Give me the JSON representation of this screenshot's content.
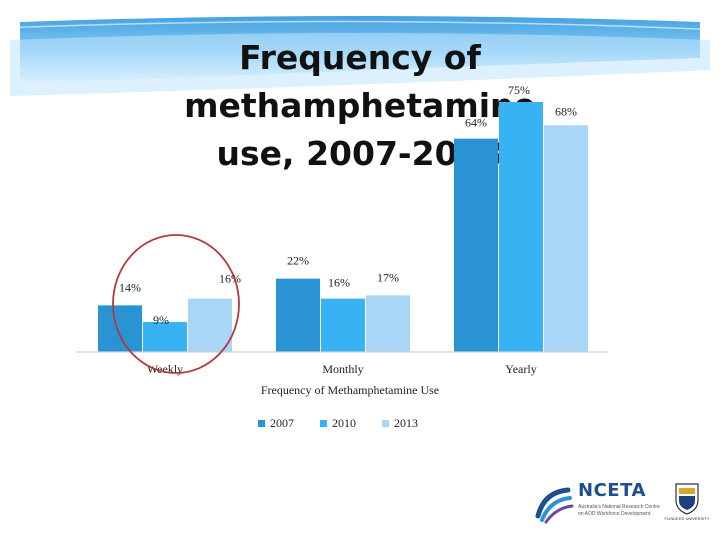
{
  "slide": {
    "title_line1": "Frequency of methamphetamine",
    "title_line2": "use, 2007-2013"
  },
  "chart_data": {
    "type": "bar",
    "title": "",
    "xlabel": "Frequency of Methamphetamine Use",
    "ylabel": "",
    "categories": [
      "Weekly",
      "Monthly",
      "Yearly"
    ],
    "series": [
      {
        "name": "2007",
        "values": [
          14,
          22,
          64
        ],
        "labels": [
          "14%",
          "22%",
          "64%"
        ],
        "color": "#2a93d4"
      },
      {
        "name": "2010",
        "values": [
          9,
          16,
          75
        ],
        "labels": [
          "9%",
          "16%",
          "75%"
        ],
        "color": "#37b2f2"
      },
      {
        "name": "2013",
        "values": [
          16,
          17,
          68
        ],
        "labels": [
          "16%",
          "17%",
          "68%"
        ],
        "color": "#a9d6f7"
      }
    ],
    "ylim": [
      0,
      78
    ],
    "grid": false,
    "legend": "bottom",
    "highlight": "Weekly"
  },
  "logos": {
    "nceta": "NCETA",
    "nceta_sub1": "Australia's National Research Centre",
    "nceta_sub2": "on AOD Workforce Development",
    "flinders": "FLINDERS UNIVERSITY",
    "accent_color": "#1f4f8f"
  },
  "colors": {
    "banner": "#3aa6e6",
    "circle": "#b23a3a"
  }
}
